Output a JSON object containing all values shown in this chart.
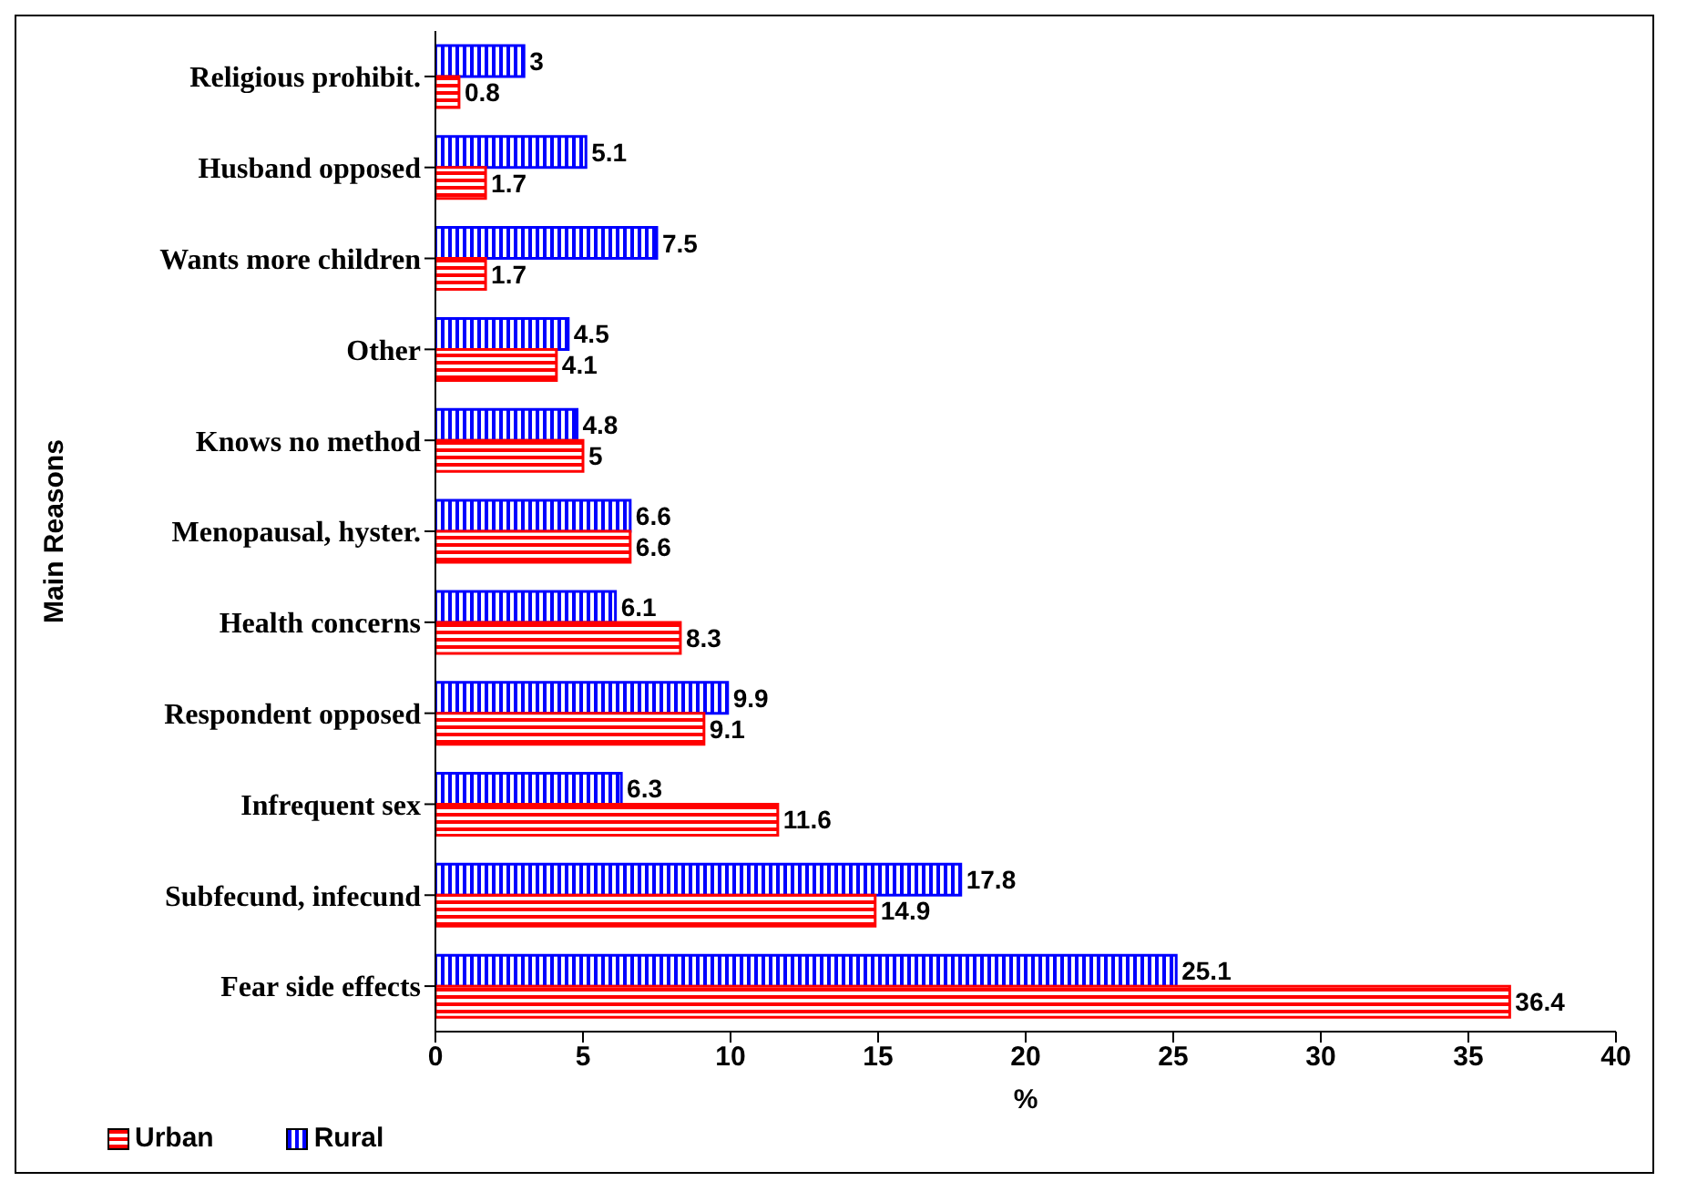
{
  "chart_data": {
    "type": "bar",
    "orientation": "horizontal",
    "ylabel": "Main Reasons",
    "xlabel": "%",
    "categories": [
      "Religious prohibit.",
      "Husband opposed",
      "Wants more children",
      "Other",
      "Knows no method",
      "Menopausal, hyster.",
      "Health concerns",
      "Respondent opposed",
      "Infrequent sex",
      "Subfecund, infecund",
      "Fear side effects"
    ],
    "series": [
      {
        "name": "Urban",
        "color": "#ff0000",
        "values": [
          0.8,
          1.7,
          1.7,
          4.1,
          5,
          6.6,
          8.3,
          9.1,
          11.6,
          14.9,
          36.4
        ]
      },
      {
        "name": "Rural",
        "color": "#0000ff",
        "values": [
          3,
          5.1,
          7.5,
          4.5,
          4.8,
          6.6,
          6.1,
          9.9,
          6.3,
          17.8,
          25.1
        ]
      }
    ],
    "xlim": [
      0,
      40
    ],
    "xticks": [
      0,
      5,
      10,
      15,
      20,
      25,
      30,
      35,
      40
    ],
    "data_labels": true,
    "grid": false,
    "legend": "bottom left"
  }
}
